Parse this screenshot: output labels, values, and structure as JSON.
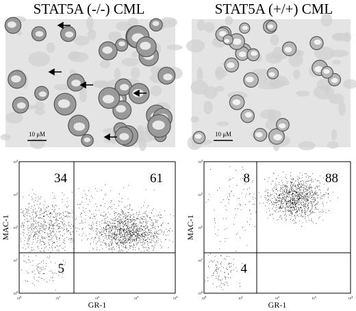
{
  "panels": [
    {
      "title": "STAT5A (-/-) CML",
      "scale_bar": "10 μM",
      "plot": {
        "x_label": "GR-1",
        "y_label": "MAC-1",
        "quadrants": {
          "upper_left": 34,
          "upper_right": 61,
          "lower_left": 5
        }
      }
    },
    {
      "title": "STAT5A (+/+) CML",
      "scale_bar": "10 μM",
      "plot": {
        "x_label": "GR-1",
        "y_label": "MAC-1",
        "quadrants": {
          "upper_left": 8,
          "upper_right": 88,
          "lower_left": 4
        }
      }
    }
  ],
  "tick_base": "10",
  "tick_exponents": [
    "0",
    "1",
    "2",
    "3",
    "4"
  ]
}
